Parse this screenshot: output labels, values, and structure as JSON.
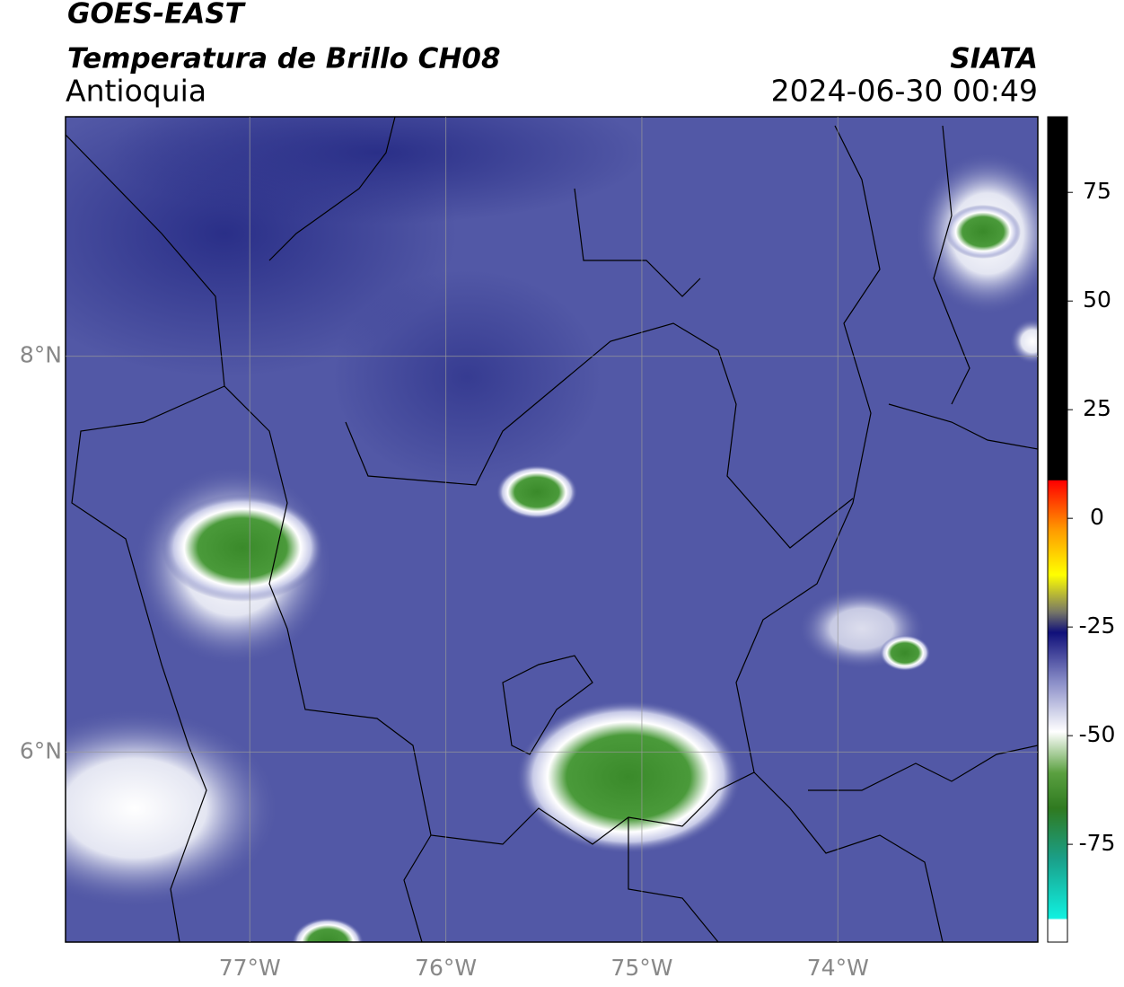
{
  "header": {
    "satellite": "GOES-EAST",
    "product": "Temperatura de Brillo CH08",
    "region": "Antioquia",
    "source": "SIATA",
    "datetime": "2024-06-30 00:49"
  },
  "map": {
    "xlim": [
      -77.94,
      -72.98
    ],
    "ylim": [
      5.04,
      9.21
    ],
    "xticks": [
      {
        "value": -77,
        "label": "77°W"
      },
      {
        "value": -76,
        "label": "76°W"
      },
      {
        "value": -75,
        "label": "75°W"
      },
      {
        "value": -74,
        "label": "74°W"
      }
    ],
    "yticks": [
      {
        "value": 6,
        "label": "6°N"
      },
      {
        "value": 8,
        "label": "8°N"
      }
    ],
    "grid": true
  },
  "colorbar": {
    "lim": [
      -97.5,
      92.4
    ],
    "ticks": [
      -75,
      -50,
      -25,
      0,
      25,
      50,
      75
    ]
  }
}
